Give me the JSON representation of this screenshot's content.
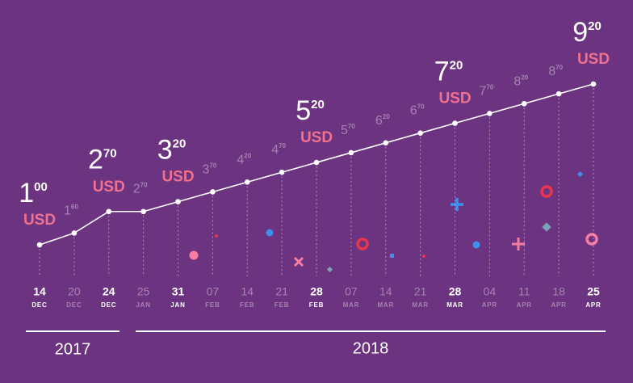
{
  "chart_data": {
    "type": "line",
    "unit": "USD",
    "categories": [
      [
        "14",
        "DEC"
      ],
      [
        "20",
        "DEC"
      ],
      [
        "24",
        "DEC"
      ],
      [
        "25",
        "JAN"
      ],
      [
        "31",
        "JAN"
      ],
      [
        "07",
        "FEB"
      ],
      [
        "14",
        "FEB"
      ],
      [
        "21",
        "FEB"
      ],
      [
        "28",
        "FEB"
      ],
      [
        "07",
        "MAR"
      ],
      [
        "14",
        "MAR"
      ],
      [
        "21",
        "MAR"
      ],
      [
        "28",
        "MAR"
      ],
      [
        "04",
        "APR"
      ],
      [
        "11",
        "APR"
      ],
      [
        "18",
        "APR"
      ],
      [
        "25",
        "APR"
      ]
    ],
    "values": [
      1.0,
      1.6,
      2.7,
      2.7,
      3.2,
      3.7,
      4.2,
      4.7,
      5.2,
      5.7,
      6.2,
      6.7,
      7.2,
      7.7,
      8.2,
      8.7,
      9.2
    ],
    "value_labels": [
      [
        "1",
        "00"
      ],
      [
        "1",
        "60"
      ],
      [
        "2",
        "70"
      ],
      [
        "2",
        "70"
      ],
      [
        "3",
        "20"
      ],
      [
        "3",
        "70"
      ],
      [
        "4",
        "20"
      ],
      [
        "4",
        "70"
      ],
      [
        "5",
        "20"
      ],
      [
        "5",
        "70"
      ],
      [
        "6",
        "20"
      ],
      [
        "6",
        "70"
      ],
      [
        "7",
        "20"
      ],
      [
        "7",
        "70"
      ],
      [
        "8",
        "20"
      ],
      [
        "8",
        "70"
      ],
      [
        "9",
        "20"
      ]
    ],
    "highlight": [
      true,
      false,
      true,
      false,
      true,
      false,
      false,
      false,
      true,
      false,
      false,
      false,
      true,
      false,
      false,
      false,
      true
    ],
    "color": "#ffffff",
    "years": [
      "2017",
      "2018"
    ]
  }
}
